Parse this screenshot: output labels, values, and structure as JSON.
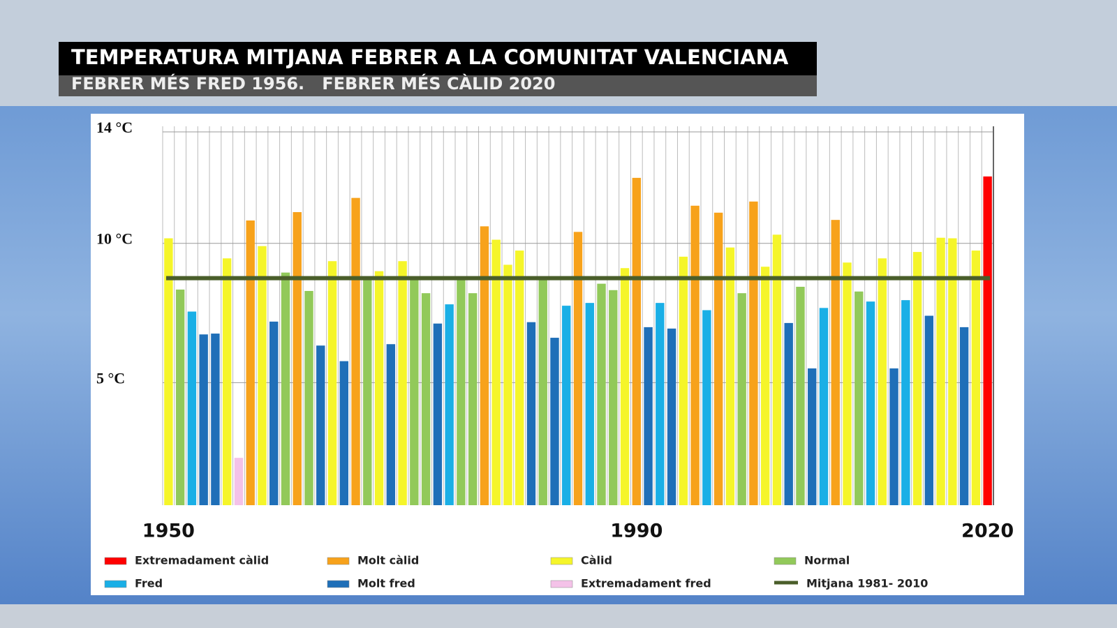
{
  "chart_data": {
    "type": "bar",
    "title": "TEMPERATURA MITJANA FEBRER A LA COMUNITAT VALENCIANA",
    "subtitle": "FEBRER MÉS FRED 1956.   FEBRER MÉS CÀLID 2020",
    "categories": [
      "1950",
      null,
      null,
      null,
      null,
      null,
      null,
      null,
      null,
      null,
      null,
      null,
      null,
      null,
      null,
      null,
      null,
      null,
      null,
      null,
      null,
      null,
      null,
      null,
      null,
      null,
      null,
      null,
      null,
      null,
      null,
      null,
      null,
      null,
      null,
      null,
      null,
      null,
      null,
      null,
      "1990",
      null,
      null,
      null,
      null,
      null,
      null,
      null,
      null,
      null,
      null,
      null,
      null,
      null,
      null,
      null,
      null,
      null,
      null,
      null,
      null,
      null,
      null,
      null,
      null,
      null,
      null,
      null,
      null,
      null,
      "2020"
    ],
    "values": [
      10.18,
      8.34,
      7.55,
      6.73,
      6.76,
      9.46,
      2.3,
      10.82,
      9.9,
      7.19,
      8.95,
      11.12,
      8.29,
      6.33,
      9.36,
      5.77,
      11.63,
      8.78,
      9.0,
      6.38,
      9.36,
      8.72,
      8.21,
      7.12,
      7.81,
      8.72,
      8.21,
      10.61,
      10.13,
      9.23,
      9.74,
      7.17,
      8.72,
      6.61,
      7.76,
      10.41,
      7.86,
      8.55,
      8.32,
      9.11,
      12.35,
      6.99,
      7.86,
      6.94,
      9.52,
      11.35,
      7.6,
      11.1,
      9.85,
      8.21,
      11.5,
      9.16,
      10.31,
      7.14,
      8.44,
      5.51,
      7.68,
      10.84,
      9.31,
      8.27,
      7.91,
      9.46,
      5.51,
      7.96,
      9.69,
      7.4,
      10.2,
      10.18,
      6.99,
      9.74,
      12.4
    ],
    "colors": [
      "#f5f52a",
      "#92c95a",
      "#1aafe6",
      "#1f6fb8",
      "#1f6fb8",
      "#f5f52a",
      "#f4c2e8",
      "#f7a21b",
      "#f5f52a",
      "#1f6fb8",
      "#92c95a",
      "#f7a21b",
      "#92c95a",
      "#1f6fb8",
      "#f5f52a",
      "#1f6fb8",
      "#f7a21b",
      "#92c95a",
      "#f5f52a",
      "#1f6fb8",
      "#f5f52a",
      "#92c95a",
      "#92c95a",
      "#1f6fb8",
      "#1aafe6",
      "#92c95a",
      "#92c95a",
      "#f7a21b",
      "#f5f52a",
      "#f5f52a",
      "#f5f52a",
      "#1f6fb8",
      "#92c95a",
      "#1f6fb8",
      "#1aafe6",
      "#f7a21b",
      "#1aafe6",
      "#92c95a",
      "#92c95a",
      "#f5f52a",
      "#f7a21b",
      "#1f6fb8",
      "#1aafe6",
      "#1f6fb8",
      "#f5f52a",
      "#f7a21b",
      "#1aafe6",
      "#f7a21b",
      "#f5f52a",
      "#92c95a",
      "#f7a21b",
      "#f5f52a",
      "#f5f52a",
      "#1f6fb8",
      "#92c95a",
      "#1f6fb8",
      "#1aafe6",
      "#f7a21b",
      "#f5f52a",
      "#92c95a",
      "#1aafe6",
      "#f5f52a",
      "#1f6fb8",
      "#1aafe6",
      "#f5f52a",
      "#1f6fb8",
      "#f5f52a",
      "#f5f52a",
      "#1f6fb8",
      "#f5f52a",
      "#ff0000"
    ],
    "ylim": [
      0.6,
      14
    ],
    "yticks": [
      {
        "value": 5,
        "label": "5 °C"
      },
      {
        "value": 10,
        "label": "10 °C"
      },
      {
        "value": 14,
        "label": "14 °C"
      }
    ],
    "grid": true,
    "reference_line": {
      "name": "Mitjana 1981- 2010",
      "value": 8.75,
      "color": "#4a5e2a"
    },
    "legend": [
      {
        "name": "Extremadament càlid",
        "color": "#ff0000"
      },
      {
        "name": "Molt càlid",
        "color": "#f7a21b"
      },
      {
        "name": "Càlid",
        "color": "#f5f52a"
      },
      {
        "name": "Normal",
        "color": "#92c95a"
      },
      {
        "name": "Fred",
        "color": "#1aafe6"
      },
      {
        "name": "Molt fred",
        "color": "#1f6fb8"
      },
      {
        "name": "Extremadament fred",
        "color": "#f4c2e8"
      }
    ]
  }
}
